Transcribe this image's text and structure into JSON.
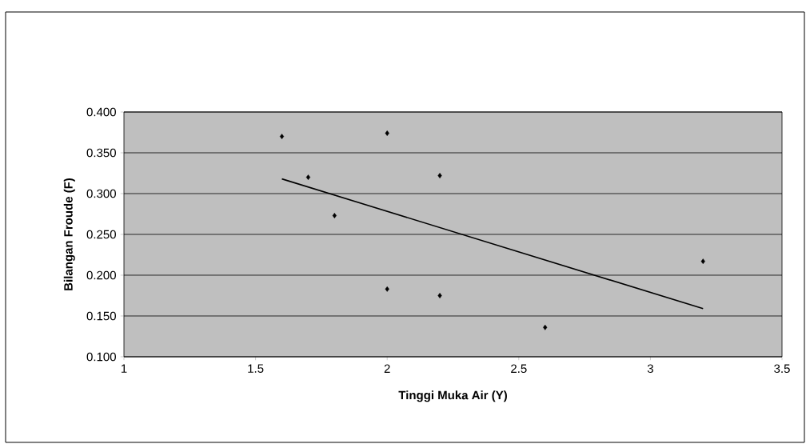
{
  "chart_data": {
    "type": "scatter",
    "xlabel": "Tinggi Muka Air (Y)",
    "ylabel": "Bilangan Froude (F)",
    "xlim": [
      1,
      3.5
    ],
    "ylim": [
      0.1,
      0.4
    ],
    "xticks": [
      1,
      1.5,
      2,
      2.5,
      3,
      3.5
    ],
    "yticks": [
      {
        "value": 0.1,
        "label": "0.100"
      },
      {
        "value": 0.15,
        "label": "0.150"
      },
      {
        "value": 0.2,
        "label": "0.200"
      },
      {
        "value": 0.25,
        "label": "0.250"
      },
      {
        "value": 0.3,
        "label": "0.300"
      },
      {
        "value": 0.35,
        "label": "0.350"
      },
      {
        "value": 0.4,
        "label": "0.400"
      }
    ],
    "grid": "y",
    "marker": "diamond",
    "series": [
      {
        "color": "#000000",
        "x": [
          1.6,
          1.7,
          1.8,
          2.0,
          2.0,
          2.2,
          2.2,
          2.6,
          3.2
        ],
        "values": [
          0.37,
          0.32,
          0.273,
          0.374,
          0.183,
          0.322,
          0.175,
          0.136,
          0.217
        ]
      },
      {
        "type": "line",
        "color": "#000000",
        "marker": "none",
        "line_style": "solid",
        "x": [
          1.6,
          3.2
        ],
        "values": [
          0.318,
          0.159
        ]
      }
    ]
  }
}
